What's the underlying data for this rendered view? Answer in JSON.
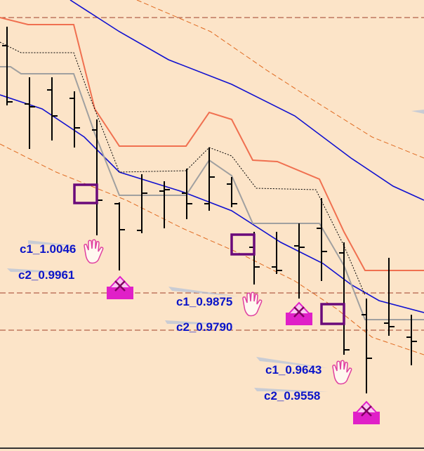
{
  "labels": [
    {
      "c1": "c1_1.0046",
      "c2": "c2_0.9961"
    },
    {
      "c1": "c1_0.9875",
      "c2": "c2_0.9790"
    },
    {
      "c1": "c1_0.9643",
      "c2": "c2_0.9558"
    }
  ]
}
